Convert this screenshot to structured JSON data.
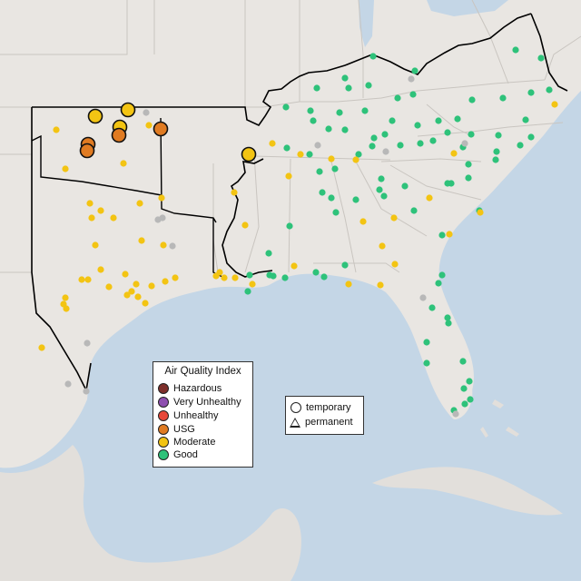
{
  "legend": {
    "title": "Air Quality Index",
    "items": [
      {
        "label": "Hazardous",
        "color": "#7e2f2b"
      },
      {
        "label": "Very Unhealthy",
        "color": "#8e4fb0"
      },
      {
        "label": "Unhealthy",
        "color": "#e8483a"
      },
      {
        "label": "USG",
        "color": "#e07b22"
      },
      {
        "label": "Moderate",
        "color": "#f3c413"
      },
      {
        "label": "Good",
        "color": "#2ec27a"
      }
    ]
  },
  "shape_legend": {
    "temporary": "temporary",
    "permanent": "permanent"
  },
  "colors": {
    "land": "#e9e6e2",
    "water": "#c4d6e6",
    "border": "#c9c5c0",
    "region_outline": "#000000",
    "inactive": "#b8b8b8"
  }
}
